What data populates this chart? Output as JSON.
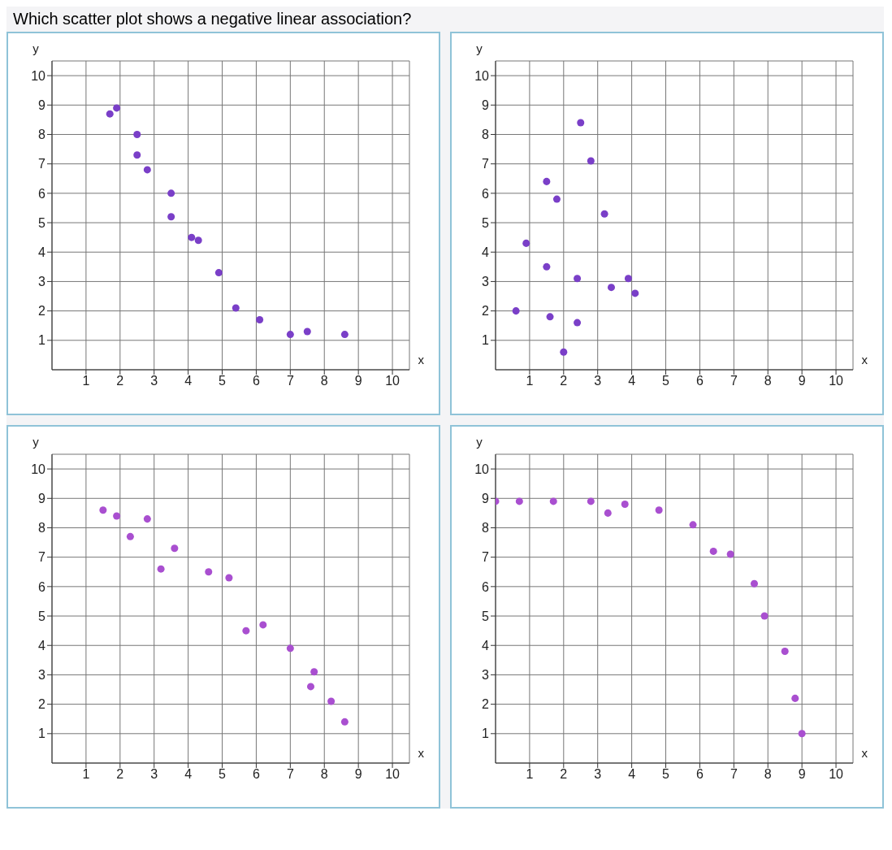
{
  "chart_data": [
    {
      "type": "scatter",
      "title": "Which scatter plot shows a negative linear association?",
      "xlabel": "x",
      "ylabel": "y",
      "xlim": [
        0,
        10.5
      ],
      "ylim": [
        0,
        10.5
      ],
      "xticks": [
        1,
        2,
        3,
        4,
        5,
        6,
        7,
        8,
        9,
        10
      ],
      "yticks": [
        1,
        2,
        3,
        4,
        5,
        6,
        7,
        8,
        9,
        10
      ],
      "grid": true,
      "marker": "circle",
      "series": [
        {
          "color": "#7a3fc8",
          "x": [
            1.7,
            1.9,
            2.5,
            2.5,
            2.8,
            3.5,
            3.5,
            4.1,
            4.3,
            4.9,
            5.4,
            6.1,
            7.0,
            7.5,
            8.6
          ],
          "values": [
            8.7,
            8.9,
            8.0,
            7.3,
            6.8,
            6.0,
            5.2,
            4.5,
            4.4,
            3.3,
            2.1,
            1.7,
            1.2,
            1.3,
            1.2
          ]
        }
      ]
    },
    {
      "type": "scatter",
      "xlabel": "x",
      "ylabel": "y",
      "xlim": [
        0,
        10.5
      ],
      "ylim": [
        0,
        10.5
      ],
      "xticks": [
        1,
        2,
        3,
        4,
        5,
        6,
        7,
        8,
        9,
        10
      ],
      "yticks": [
        1,
        2,
        3,
        4,
        5,
        6,
        7,
        8,
        9,
        10
      ],
      "grid": true,
      "marker": "circle",
      "series": [
        {
          "color": "#7a3fc8",
          "x": [
            2.5,
            2.8,
            1.5,
            1.8,
            3.2,
            0.9,
            1.5,
            2.4,
            3.9,
            3.4,
            4.1,
            0.6,
            1.6,
            2.4,
            2.0
          ],
          "values": [
            8.4,
            7.1,
            6.4,
            5.8,
            5.3,
            4.3,
            3.5,
            3.1,
            3.1,
            2.8,
            2.6,
            2.0,
            1.8,
            1.6,
            0.6
          ]
        }
      ]
    },
    {
      "type": "scatter",
      "xlabel": "x",
      "ylabel": "y",
      "xlim": [
        0,
        10.5
      ],
      "ylim": [
        0,
        10.5
      ],
      "xticks": [
        1,
        2,
        3,
        4,
        5,
        6,
        7,
        8,
        9,
        10
      ],
      "yticks": [
        1,
        2,
        3,
        4,
        5,
        6,
        7,
        8,
        9,
        10
      ],
      "grid": true,
      "marker": "circle",
      "series": [
        {
          "color": "#a94fd0",
          "x": [
            1.5,
            1.9,
            2.8,
            2.3,
            3.6,
            3.2,
            4.6,
            5.2,
            5.7,
            6.2,
            7.0,
            7.7,
            7.6,
            8.2,
            8.6
          ],
          "values": [
            8.6,
            8.4,
            8.3,
            7.7,
            7.3,
            6.6,
            6.5,
            6.3,
            4.5,
            4.7,
            3.9,
            3.1,
            2.6,
            2.1,
            1.4
          ]
        }
      ]
    },
    {
      "type": "scatter",
      "xlabel": "x",
      "ylabel": "y",
      "xlim": [
        0,
        10.5
      ],
      "ylim": [
        0,
        10.5
      ],
      "xticks": [
        1,
        2,
        3,
        4,
        5,
        6,
        7,
        8,
        9,
        10
      ],
      "yticks": [
        1,
        2,
        3,
        4,
        5,
        6,
        7,
        8,
        9,
        10
      ],
      "grid": true,
      "marker": "circle",
      "series": [
        {
          "color": "#a94fd0",
          "x": [
            0,
            0.7,
            1.7,
            2.8,
            3.3,
            3.8,
            4.8,
            5.8,
            6.4,
            6.9,
            7.6,
            7.9,
            8.5,
            8.8,
            9.0
          ],
          "values": [
            8.9,
            8.9,
            8.9,
            8.9,
            8.5,
            8.8,
            8.6,
            8.1,
            7.2,
            7.1,
            6.1,
            5.0,
            3.8,
            2.2,
            1.0
          ]
        }
      ]
    }
  ]
}
